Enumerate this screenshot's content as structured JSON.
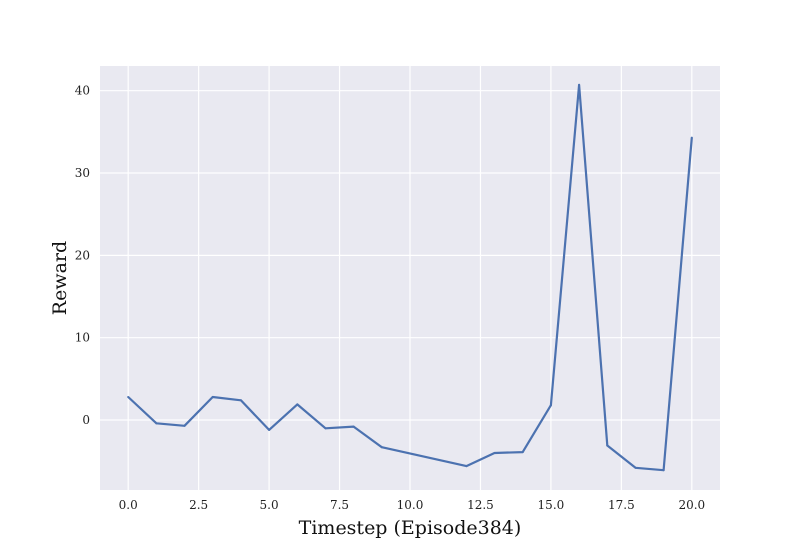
{
  "chart_data": {
    "type": "line",
    "title": "",
    "xlabel": "Timestep (Episode384)",
    "ylabel": "Reward",
    "xlim": [
      -1.0,
      21.0
    ],
    "ylim": [
      -8.5,
      43.0
    ],
    "x_ticks": [
      0.0,
      2.5,
      5.0,
      7.5,
      10.0,
      12.5,
      15.0,
      17.5,
      20.0
    ],
    "x_tick_labels": [
      "0.0",
      "2.5",
      "5.0",
      "7.5",
      "10.0",
      "12.5",
      "15.0",
      "17.5",
      "20.0"
    ],
    "y_ticks": [
      0,
      10,
      20,
      30,
      40
    ],
    "y_tick_labels": [
      "0",
      "10",
      "20",
      "30",
      "40"
    ],
    "grid": true,
    "legend": "none",
    "colors": {
      "background": "#e9e9f1",
      "grid": "#ffffff",
      "line": "#4c72b0"
    },
    "series": [
      {
        "x": [
          0,
          1,
          2,
          3,
          4,
          5,
          6,
          7,
          8,
          9,
          12,
          13,
          14,
          15,
          16,
          17,
          18,
          19,
          20
        ],
        "values": [
          2.8,
          -0.4,
          -0.7,
          2.8,
          2.4,
          -1.2,
          1.9,
          -1.0,
          -0.8,
          -3.3,
          -5.6,
          -4.0,
          -3.9,
          1.8,
          40.7,
          -3.1,
          -5.8,
          -6.1,
          34.3
        ]
      }
    ]
  }
}
